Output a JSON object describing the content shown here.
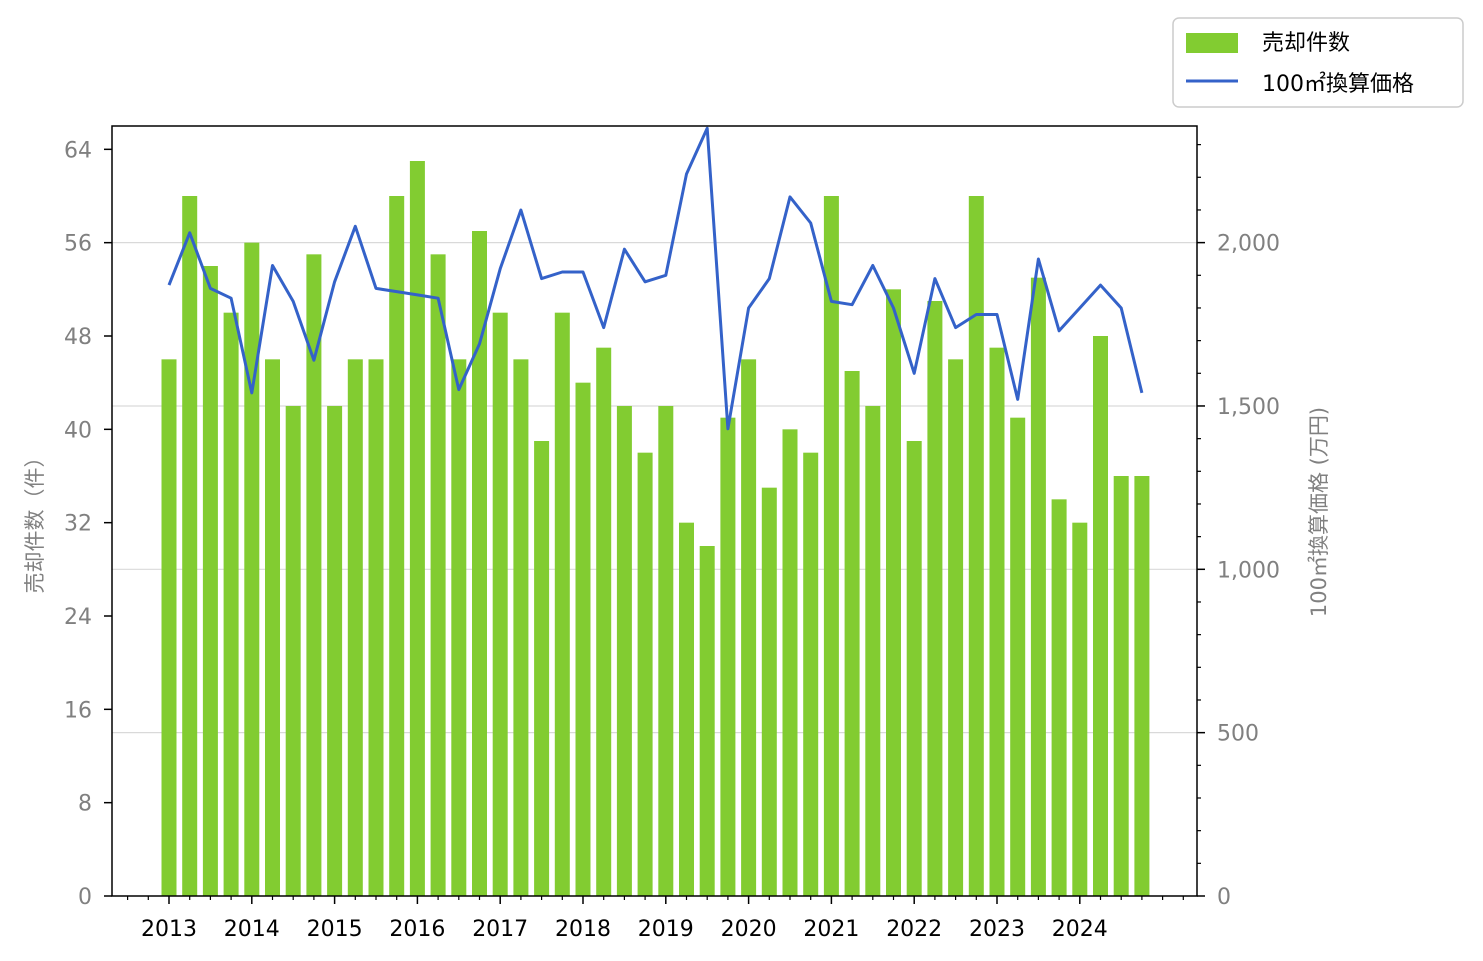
{
  "chart_data": {
    "type": "bar",
    "title": "",
    "x_tick_labels": [
      "2013",
      "2014",
      "2015",
      "2016",
      "2017",
      "2018",
      "2019",
      "2020",
      "2021",
      "2022",
      "2023",
      "2024"
    ],
    "y_left": {
      "label": "売却件数（件）",
      "ylim": [
        0,
        66
      ],
      "ticks": [
        0,
        8,
        16,
        24,
        32,
        40,
        48,
        56,
        64
      ]
    },
    "y_right": {
      "label": "100㎡換算価格 (万円)",
      "ylim": [
        0,
        2357
      ],
      "ticks": [
        0,
        500,
        1000,
        1500,
        2000
      ],
      "tick_labels": [
        "0",
        "500",
        "1,000",
        "1,500",
        "2,000"
      ]
    },
    "grid": "horizontal (right axis)",
    "legend": {
      "placement": "top-right, outside plot",
      "entries": [
        "売却件数",
        "100㎡換算価格"
      ]
    },
    "colors": {
      "bars": "#82cc31",
      "line": "#3462c9"
    },
    "x": [
      "2013Q1",
      "2013Q2",
      "2013Q3",
      "2013Q4",
      "2014Q1",
      "2014Q2",
      "2014Q3",
      "2014Q4",
      "2015Q1",
      "2015Q2",
      "2015Q3",
      "2015Q4",
      "2016Q1",
      "2016Q2",
      "2016Q3",
      "2016Q4",
      "2017Q1",
      "2017Q2",
      "2017Q3",
      "2017Q4",
      "2018Q1",
      "2018Q2",
      "2018Q3",
      "2018Q4",
      "2019Q1",
      "2019Q2",
      "2019Q3",
      "2019Q4",
      "2020Q1",
      "2020Q2",
      "2020Q3",
      "2020Q4",
      "2021Q1",
      "2021Q2",
      "2021Q3",
      "2021Q4",
      "2022Q1",
      "2022Q2",
      "2022Q3",
      "2022Q4",
      "2023Q1",
      "2023Q2",
      "2023Q3",
      "2023Q4",
      "2024Q1",
      "2024Q2",
      "2024Q3",
      "2024Q4"
    ],
    "series": [
      {
        "name": "売却件数",
        "kind": "bar",
        "axis": "left",
        "values": [
          46,
          60,
          54,
          50,
          56,
          46,
          42,
          55,
          42,
          46,
          46,
          60,
          63,
          55,
          46,
          57,
          50,
          46,
          39,
          50,
          44,
          47,
          42,
          38,
          42,
          32,
          30,
          41,
          46,
          35,
          40,
          38,
          60,
          45,
          42,
          52,
          39,
          51,
          46,
          60,
          47,
          41,
          53,
          34,
          32,
          48,
          36,
          36
        ]
      },
      {
        "name": "100㎡換算価格",
        "kind": "line",
        "axis": "right",
        "values": [
          1870,
          2030,
          1860,
          1830,
          1540,
          1930,
          1820,
          1640,
          1880,
          2050,
          1860,
          1850,
          1840,
          1830,
          1550,
          1690,
          1920,
          2100,
          1890,
          1910,
          1910,
          1740,
          1980,
          1880,
          1900,
          2210,
          2350,
          1430,
          1800,
          1890,
          2140,
          2060,
          1820,
          1810,
          1930,
          1800,
          1600,
          1890,
          1740,
          1780,
          1780,
          1520,
          1950,
          1730,
          1800,
          1870,
          1800,
          1540
        ]
      }
    ]
  }
}
